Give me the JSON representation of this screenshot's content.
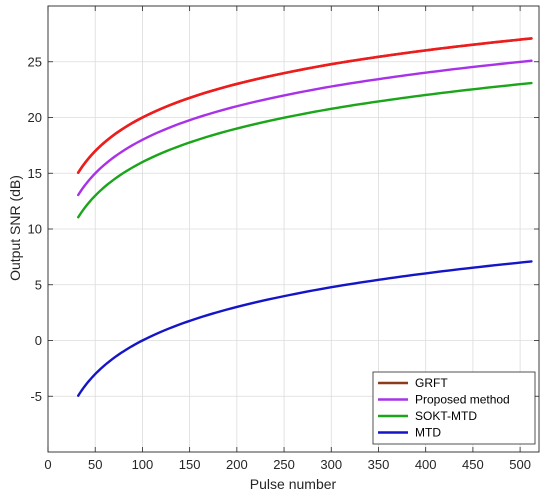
{
  "chart_data": {
    "type": "line",
    "xlabel": "Pulse number",
    "ylabel": "Output SNR (dB)",
    "xlim": [
      0,
      520
    ],
    "ylim": [
      -10,
      30
    ],
    "xticks": [
      0,
      50,
      100,
      150,
      200,
      250,
      300,
      350,
      400,
      450,
      500
    ],
    "yticks": [
      -5,
      0,
      5,
      10,
      15,
      20,
      25
    ],
    "grid": true,
    "legend_position": "bottom-right",
    "x": [
      32,
      40,
      50,
      64,
      80,
      100,
      128,
      160,
      200,
      256,
      300,
      350,
      400,
      450,
      512
    ],
    "series": [
      {
        "name": "GRFT",
        "color": "#8b3a1a",
        "values": [
          15.05,
          16.02,
          16.99,
          18.06,
          19.03,
          20.0,
          21.07,
          22.04,
          23.01,
          24.08,
          24.78,
          25.44,
          26.02,
          26.53,
          27.09
        ]
      },
      {
        "name": "Proposed method",
        "color": "#a832e8",
        "values": [
          13.05,
          14.02,
          14.99,
          16.06,
          17.03,
          18.0,
          19.07,
          20.04,
          21.01,
          22.08,
          22.78,
          23.44,
          24.02,
          24.53,
          25.09
        ]
      },
      {
        "name": "SOKT-MTD",
        "color": "#1aa51a",
        "values": [
          11.05,
          12.02,
          12.99,
          14.06,
          15.03,
          16.0,
          17.07,
          18.04,
          19.01,
          20.08,
          20.78,
          21.44,
          22.02,
          22.53,
          23.09
        ]
      },
      {
        "name": "MTD",
        "color": "#1515c8",
        "values": [
          -4.95,
          -3.98,
          -3.01,
          -1.94,
          -0.97,
          0.0,
          1.07,
          2.04,
          3.01,
          4.08,
          4.78,
          5.44,
          6.02,
          6.53,
          7.09
        ]
      }
    ]
  },
  "overlay_series": {
    "name": "GRFT",
    "color": "#ee1c1c"
  }
}
